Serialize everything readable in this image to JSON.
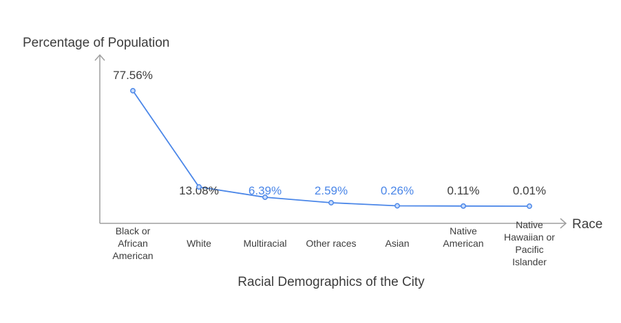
{
  "chart_data": {
    "type": "line",
    "title": "Racial Demographics of the City",
    "xlabel": "Race",
    "ylabel": "Percentage of Population",
    "categories": [
      "Black or African American",
      "White",
      "Multiracial",
      "Other races",
      "Asian",
      "Native American",
      "Native Hawaiian or Pacific Islander"
    ],
    "category_lines": [
      [
        "Black or",
        "African",
        "American"
      ],
      [
        "White"
      ],
      [
        "Multiracial"
      ],
      [
        "Other races"
      ],
      [
        "Asian"
      ],
      [
        "Native",
        "American"
      ],
      [
        "Native",
        "Hawaiian or",
        "Pacific",
        "Islander"
      ]
    ],
    "values": [
      77.56,
      13.08,
      6.39,
      2.59,
      0.26,
      0.11,
      0.01
    ],
    "data_labels": [
      "77.56%",
      "13.08%",
      "6.39%",
      "2.59%",
      "0.26%",
      "0.11%",
      "0.01%"
    ],
    "label_colors": [
      "#3c3c3c",
      "#3c3c3c",
      "#4a86e8",
      "#4a86e8",
      "#4a86e8",
      "#3c3c3c",
      "#3c3c3c"
    ],
    "line_color": "#4a86e8",
    "axis_color": "#9e9e9e",
    "grid": false
  }
}
